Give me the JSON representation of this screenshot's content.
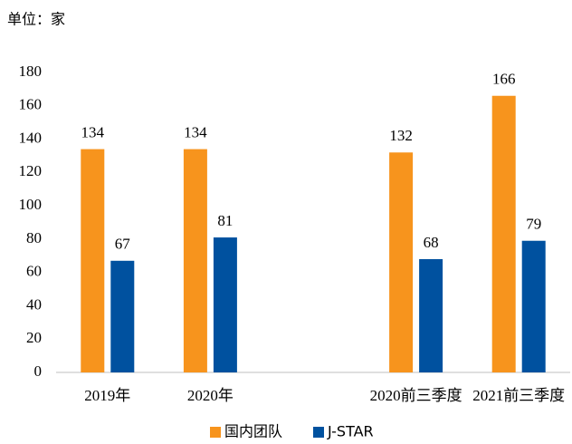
{
  "chart_data": {
    "type": "bar",
    "unit_label": "单位：家",
    "categories": [
      "2019年",
      "2020年",
      null,
      "2020前三季度",
      "2021前三季度"
    ],
    "series": [
      {
        "name": "国内团队",
        "color": "#f7941d",
        "values": [
          134,
          134,
          null,
          132,
          166
        ]
      },
      {
        "name": "J-STAR",
        "color": "#00519f",
        "values": [
          67,
          81,
          null,
          68,
          79
        ]
      }
    ],
    "ylim": [
      0,
      180
    ],
    "yticks": [
      0,
      20,
      40,
      60,
      80,
      100,
      120,
      140,
      160,
      180
    ],
    "grid": false,
    "legend": "bottom"
  }
}
